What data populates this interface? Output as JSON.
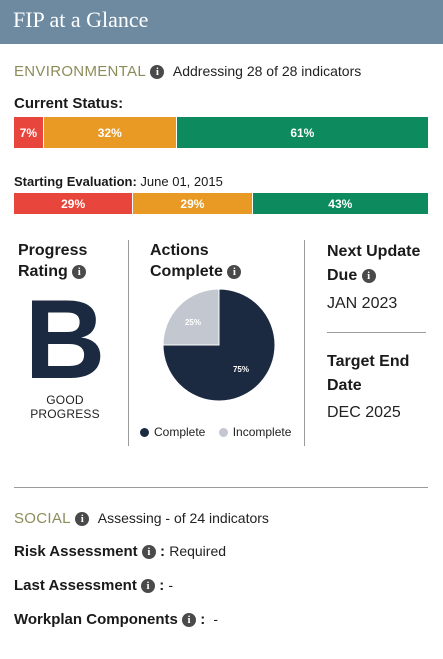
{
  "header": {
    "title": "FIP at a Glance"
  },
  "environmental": {
    "title": "ENVIRONMENTAL",
    "subtitle": "Addressing 28 of 28 indicators",
    "current_status_label": "Current Status:",
    "current_status": [
      {
        "label": "7%",
        "value": 7,
        "color": "#e8453c"
      },
      {
        "label": "32%",
        "value": 32,
        "color": "#e89a25"
      },
      {
        "label": "61%",
        "value": 61,
        "color": "#0d8a5e"
      }
    ],
    "starting_label": "Starting Evaluation:",
    "starting_date": "June 01, 2015",
    "starting": [
      {
        "label": "29%",
        "value": 29,
        "color": "#e8453c"
      },
      {
        "label": "29%",
        "value": 29,
        "color": "#e89a25"
      },
      {
        "label": "43%",
        "value": 43,
        "color": "#0d8a5e"
      }
    ]
  },
  "progress": {
    "title_line1": "Progress",
    "title_line2": "Rating",
    "grade": "B",
    "grade_label": "GOOD PROGRESS"
  },
  "actions": {
    "title_line1": "Actions",
    "title_line2": "Complete",
    "complete_pct": "75%",
    "incomplete_pct": "25%",
    "legend_complete": "Complete",
    "legend_incomplete": "Incomplete",
    "colors": {
      "complete": "#1b2a41",
      "incomplete": "#c2c7d0"
    }
  },
  "chart_data": {
    "type": "pie",
    "categories": [
      "Complete",
      "Incomplete"
    ],
    "values": [
      75,
      25
    ]
  },
  "next_update": {
    "label_line1": "Next Update",
    "label_line2": "Due",
    "value": "JAN 2023"
  },
  "target_end": {
    "label_line1": "Target End",
    "label_line2": "Date",
    "value": "DEC 2025"
  },
  "social": {
    "title": "SOCIAL",
    "subtitle": "Assessing - of 24 indicators",
    "risk_label": "Risk Assessment",
    "risk_value": "Required",
    "last_label": "Last Assessment",
    "last_value": "-",
    "workplan_label": "Workplan Components",
    "workplan_value": "-"
  },
  "icons": {
    "info": "info-icon"
  }
}
